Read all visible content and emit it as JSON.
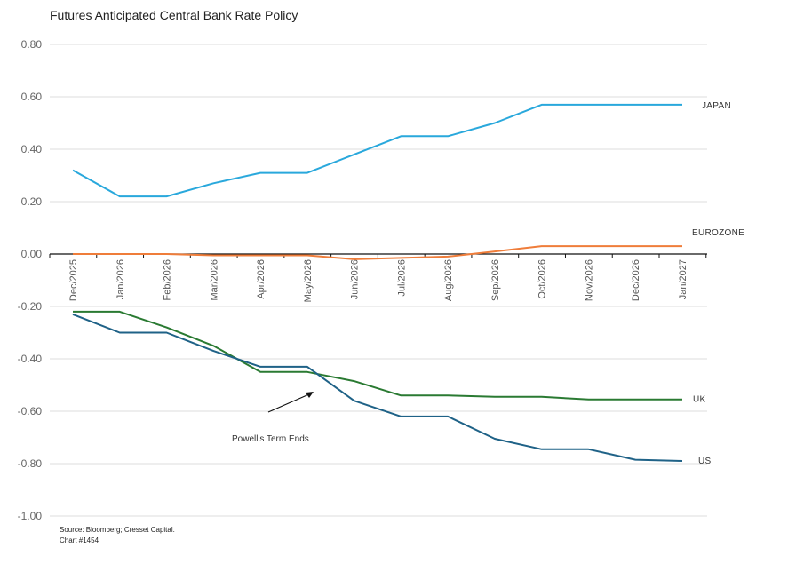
{
  "chart_data": {
    "type": "line",
    "title": "Futures Anticipated Central Bank Rate Policy",
    "xlabel": "",
    "ylabel": "",
    "ylim": [
      -1.0,
      0.8
    ],
    "yticks": [
      "0.80",
      "0.60",
      "0.40",
      "0.20",
      "0.00",
      "-0.20",
      "-0.40",
      "-0.60",
      "-0.80",
      "-1.00"
    ],
    "grid": true,
    "legend_position": "inline-right",
    "categories": [
      "Dec/2025",
      "Jan/2026",
      "Feb/2026",
      "Mar/2026",
      "Apr/2026",
      "May/2026",
      "Jun/2026",
      "Jul/2026",
      "Aug/2026",
      "Sep/2026",
      "Oct/2026",
      "Nov/2026",
      "Dec/2026",
      "Jan/2027"
    ],
    "series": [
      {
        "name": "JAPAN",
        "color": "#29a8dc",
        "values": [
          0.32,
          0.22,
          0.22,
          0.27,
          0.31,
          0.31,
          0.38,
          0.45,
          0.45,
          0.5,
          0.57,
          0.57,
          0.57,
          0.57
        ]
      },
      {
        "name": "EUROZONE",
        "color": "#ef7d3a",
        "values": [
          0.0,
          0.0,
          0.0,
          -0.005,
          -0.005,
          -0.005,
          -0.02,
          -0.015,
          -0.01,
          0.01,
          0.03,
          0.03,
          0.03,
          0.03
        ]
      },
      {
        "name": "UK",
        "color": "#2a7a32",
        "values": [
          -0.22,
          -0.22,
          -0.28,
          -0.35,
          -0.45,
          -0.45,
          -0.485,
          -0.54,
          -0.54,
          -0.545,
          -0.545,
          -0.555,
          -0.555,
          -0.555
        ]
      },
      {
        "name": "US",
        "color": "#1f6287",
        "values": [
          -0.23,
          -0.3,
          -0.3,
          -0.37,
          -0.43,
          -0.43,
          -0.56,
          -0.62,
          -0.62,
          -0.705,
          -0.745,
          -0.745,
          -0.785,
          -0.79
        ]
      }
    ],
    "annotations": [
      {
        "text": "Powell's Term Ends",
        "points_to": "May/2026"
      }
    ]
  },
  "footer": {
    "source": "Source: Bloomberg; Cresset Capital.",
    "chart_id": "Chart #1454"
  }
}
